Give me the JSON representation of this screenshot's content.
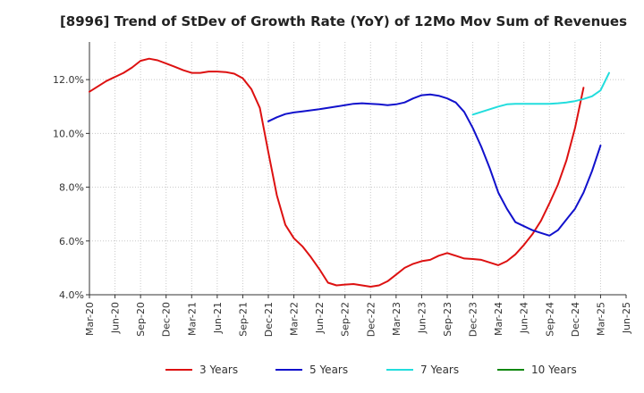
{
  "chart_data": {
    "type": "line",
    "title": "[8996]  Trend of StDev of Growth Rate (YoY) of 12Mo Mov Sum of Revenues",
    "xlabel": "",
    "ylabel": "",
    "y_unit": "%",
    "ylim": [
      4.0,
      13.4
    ],
    "yticks": [
      4.0,
      6.0,
      8.0,
      10.0,
      12.0
    ],
    "ytick_labels": [
      "4.0%",
      "6.0%",
      "8.0%",
      "10.0%",
      "12.0%"
    ],
    "x_months_range": [
      "Mar-20",
      "Jun-25"
    ],
    "xtick_labels": [
      "Mar-20",
      "Jun-20",
      "Sep-20",
      "Dec-20",
      "Mar-21",
      "Jun-21",
      "Sep-21",
      "Dec-21",
      "Mar-22",
      "Jun-22",
      "Sep-22",
      "Dec-22",
      "Mar-23",
      "Jun-23",
      "Sep-23",
      "Dec-23",
      "Mar-24",
      "Jun-24",
      "Sep-24",
      "Dec-24",
      "Mar-25",
      "Jun-25"
    ],
    "grid": true,
    "legend_position": "bottom",
    "series": [
      {
        "name": "3 Years",
        "color": "#dd1111",
        "start_month_index": 0,
        "values": [
          11.55,
          11.75,
          11.95,
          12.1,
          12.25,
          12.45,
          12.7,
          12.78,
          12.72,
          12.6,
          12.48,
          12.35,
          12.25,
          12.25,
          12.3,
          12.3,
          12.28,
          12.22,
          12.05,
          11.65,
          10.95,
          9.3,
          7.7,
          6.6,
          6.1,
          5.8,
          5.4,
          4.95,
          4.45,
          4.35,
          4.38,
          4.4,
          4.35,
          4.3,
          4.35,
          4.5,
          4.75,
          5.0,
          5.15,
          5.25,
          5.3,
          5.45,
          5.55,
          5.45,
          5.35,
          5.33,
          5.3,
          5.2,
          5.1,
          5.25,
          5.5,
          5.85,
          6.25,
          6.75,
          7.4,
          8.1,
          9.0,
          10.2,
          11.7
        ]
      },
      {
        "name": "5 Years",
        "color": "#1111cc",
        "start_month_index": 21,
        "values": [
          10.45,
          10.6,
          10.72,
          10.78,
          10.82,
          10.86,
          10.9,
          10.95,
          11.0,
          11.05,
          11.1,
          11.12,
          11.1,
          11.08,
          11.05,
          11.08,
          11.15,
          11.3,
          11.42,
          11.45,
          11.4,
          11.3,
          11.15,
          10.8,
          10.2,
          9.5,
          8.7,
          7.8,
          7.2,
          6.7,
          6.55,
          6.4,
          6.3,
          6.2,
          6.4,
          6.8,
          7.2,
          7.8,
          8.6,
          9.55
        ]
      },
      {
        "name": "7 Years",
        "color": "#22dddd",
        "start_month_index": 45,
        "values": [
          10.7,
          10.8,
          10.9,
          11.0,
          11.08,
          11.1,
          11.1,
          11.1,
          11.1,
          11.1,
          11.12,
          11.15,
          11.2,
          11.28,
          11.38,
          11.6,
          12.25
        ]
      },
      {
        "name": "10 Years",
        "color": "#118811",
        "start_month_index": 0,
        "values": []
      }
    ]
  }
}
